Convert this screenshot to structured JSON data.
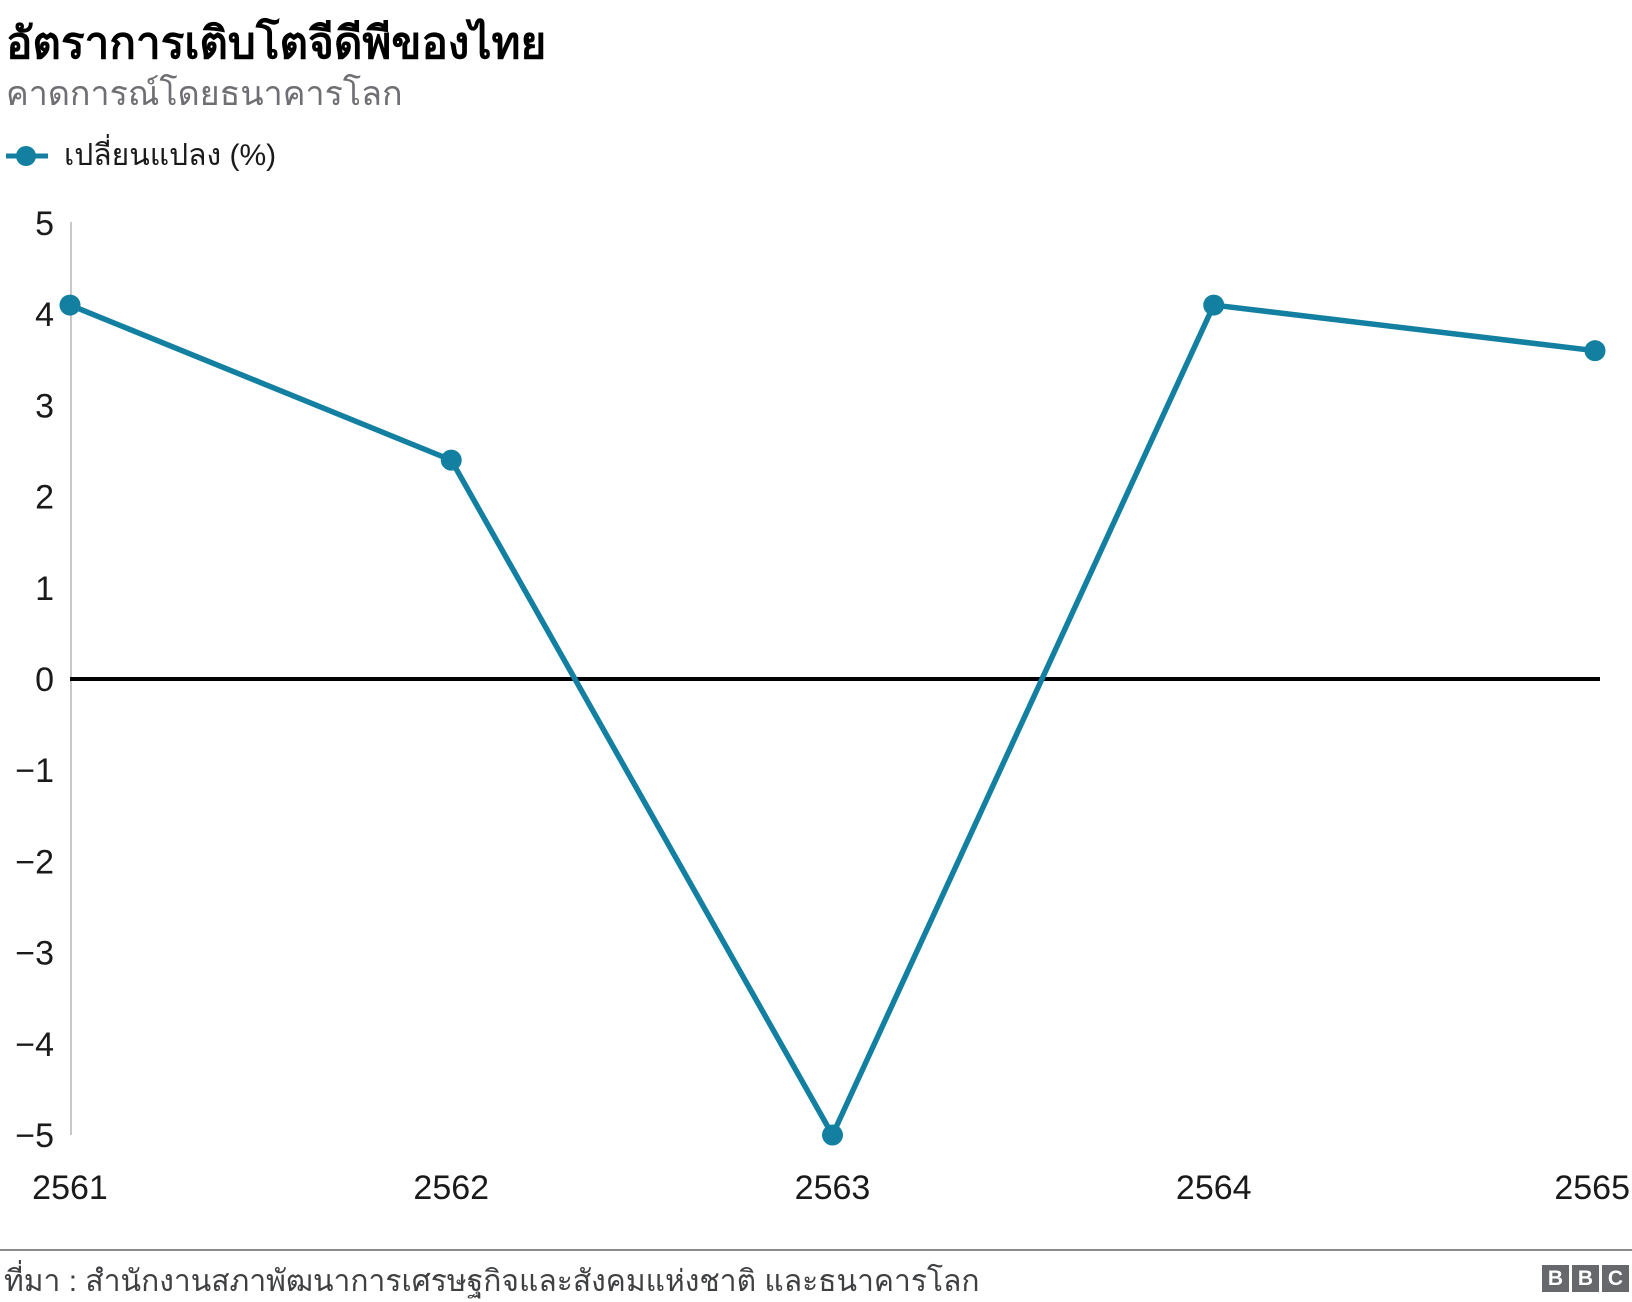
{
  "header": {
    "title": "อัตราการเติบโตจีดีพีของไทย",
    "subtitle": "คาดการณ์โดยธนาคารโลก"
  },
  "chart_data": {
    "type": "line",
    "title": "อัตราการเติบโตจีดีพีของไทย",
    "subtitle": "คาดการณ์โดยธนาคารโลก",
    "categories": [
      "2561",
      "2562",
      "2563",
      "2564",
      "2565"
    ],
    "series": [
      {
        "name": "เปลี่ยนแปลง (%)",
        "values": [
          4.1,
          2.4,
          -5.0,
          4.1,
          3.6
        ]
      }
    ],
    "xlabel": "",
    "ylabel": "",
    "ylim": [
      -5,
      5
    ],
    "yticks": [
      5,
      4,
      3,
      2,
      1,
      0,
      -1,
      -2,
      -3,
      -4,
      -5
    ],
    "grid": false,
    "zero_line": true,
    "legend_position": "top-left",
    "line_color": "#1380A1",
    "marker": "circle"
  },
  "footer": {
    "source": "ที่มา : สำนักงานสภาพัฒนาการเศรษฐกิจและสังคมแห่งชาติ และธนาคารโลก",
    "logo_letters": [
      "B",
      "B",
      "C"
    ]
  },
  "colors": {
    "accent": "#1380A1",
    "title_text": "#000000",
    "subtitle_text": "#6E6E73",
    "axis_text": "#1a1a1a",
    "axis_line": "#c8c8c8",
    "zero_line": "#000000",
    "separator": "#8a8a8a",
    "source_text": "#3F4042",
    "logo_bg": "#66686B"
  }
}
